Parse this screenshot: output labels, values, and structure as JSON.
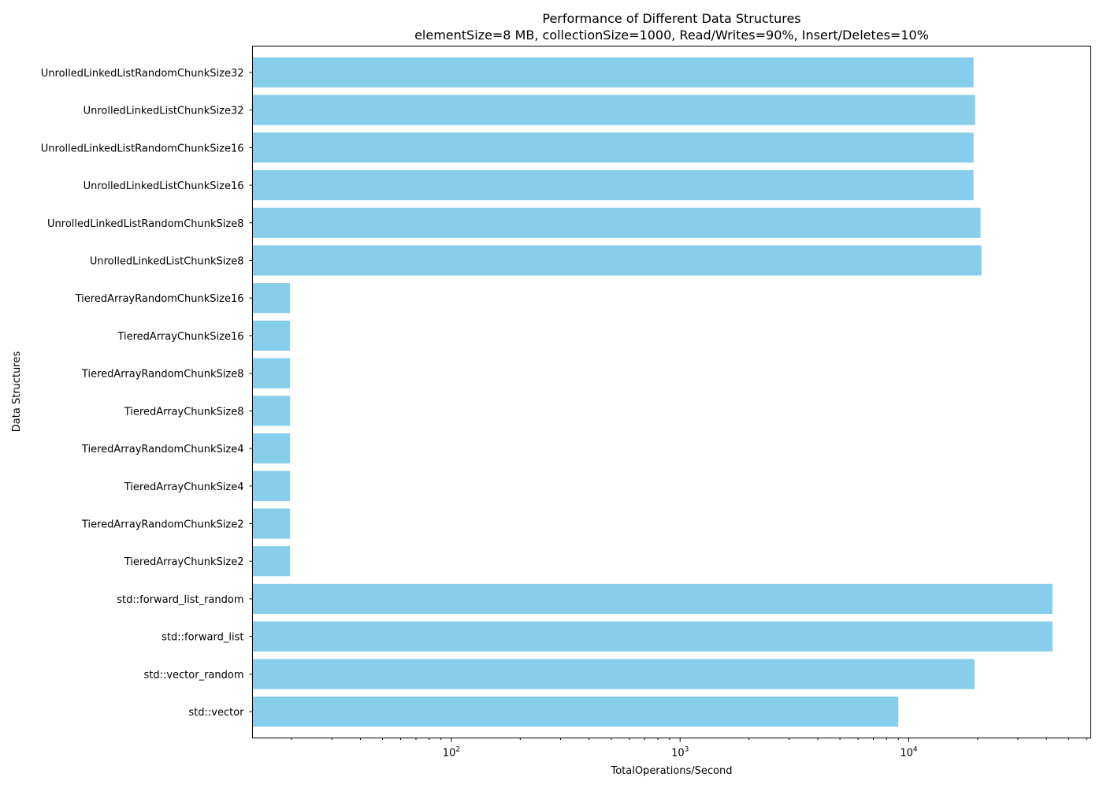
{
  "chart_data": {
    "type": "bar",
    "orientation": "horizontal",
    "title": "Performance of Different Data Structures",
    "subtitle": "elementSize=8 MB, collectionSize=1000, Read/Writes=90%, Insert/Deletes=10%",
    "xlabel": "TotalOperations/Second",
    "ylabel": "Data Structures",
    "xscale": "log",
    "xlim": [
      13.5,
      62500
    ],
    "x_ticks": [
      {
        "value": 100,
        "base": "10",
        "exp": "2"
      },
      {
        "value": 1000,
        "base": "10",
        "exp": "3"
      },
      {
        "value": 10000,
        "base": "10",
        "exp": "4"
      }
    ],
    "grid": false,
    "bar_color": "#87ceeb",
    "categories": [
      "UnrolledLinkedListRandomChunkSize32",
      "UnrolledLinkedListChunkSize32",
      "UnrolledLinkedListRandomChunkSize16",
      "UnrolledLinkedListChunkSize16",
      "UnrolledLinkedListRandomChunkSize8",
      "UnrolledLinkedListChunkSize8",
      "TieredArrayRandomChunkSize16",
      "TieredArrayChunkSize16",
      "TieredArrayRandomChunkSize8",
      "TieredArrayChunkSize8",
      "TieredArrayRandomChunkSize4",
      "TieredArrayChunkSize4",
      "TieredArrayRandomChunkSize2",
      "TieredArrayChunkSize2",
      "std::forward_list_random",
      "std::forward_list",
      "std::vector_random",
      "std::vector"
    ],
    "values": [
      19200,
      19500,
      19200,
      19200,
      20600,
      20800,
      19.7,
      19.7,
      19.7,
      19.7,
      19.7,
      19.7,
      19.7,
      19.7,
      42500,
      42500,
      19400,
      9000
    ]
  }
}
